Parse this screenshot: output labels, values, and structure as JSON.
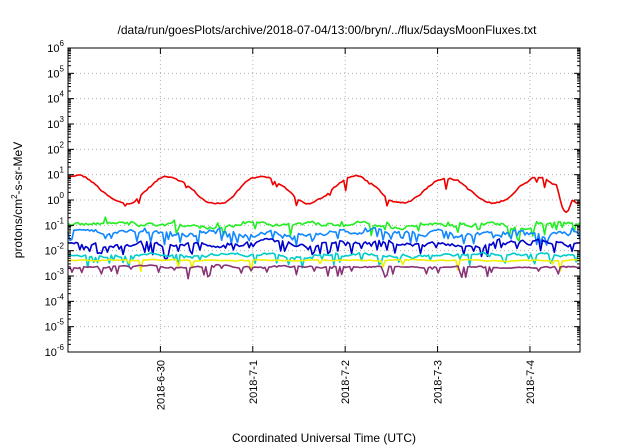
{
  "chart_data": {
    "type": "line",
    "title": "/data/run/goesPlots/archive/2018-07-04/13:00/bryn/../flux/5daysMoonFluxes.txt",
    "xlabel": "Coordinated Universal Time (UTC)",
    "ylabel": {
      "pre": "protons/cm",
      "sup": "2",
      "post": "-s-sr-MeV"
    },
    "yscale": "log",
    "ylim": [
      1e-06,
      1000000.0
    ],
    "xlim": [
      "2018-06-29T00:00",
      "2018-07-04T13:00"
    ],
    "grid": true,
    "legend": "none",
    "y_ticks": [
      {
        "value": 1e-06,
        "exp": "-6"
      },
      {
        "value": 1e-05,
        "exp": "-5"
      },
      {
        "value": 0.0001,
        "exp": "-4"
      },
      {
        "value": 0.001,
        "exp": "-3"
      },
      {
        "value": 0.01,
        "exp": "-2"
      },
      {
        "value": 0.1,
        "exp": "-1"
      },
      {
        "value": 1,
        "exp": "0"
      },
      {
        "value": 10,
        "exp": "1"
      },
      {
        "value": 100,
        "exp": "2"
      },
      {
        "value": 1000,
        "exp": "3"
      },
      {
        "value": 10000,
        "exp": "4"
      },
      {
        "value": 100000,
        "exp": "5"
      },
      {
        "value": 1000000,
        "exp": "6"
      }
    ],
    "x_ticks": [
      {
        "value": "2018-06-30T00:00",
        "label": "2018-6-30"
      },
      {
        "value": "2018-07-01T00:00",
        "label": "2018-7-1"
      },
      {
        "value": "2018-07-02T00:00",
        "label": "2018-7-2"
      },
      {
        "value": "2018-07-03T00:00",
        "label": "2018-7-3"
      },
      {
        "value": "2018-07-04T00:00",
        "label": "2018-7-4"
      }
    ],
    "series": [
      {
        "color": "#ee0000",
        "base": 2.5,
        "diurnal": 0.55,
        "phase": 0.85,
        "noise": 0.08,
        "spikes": 0.05,
        "dips": [
          [
            "2018-07-04T07:00",
            "2018-07-04T11:00",
            0.8
          ]
        ]
      },
      {
        "color": "#22ee22",
        "base": 0.11,
        "diurnal": 0,
        "phase": 0,
        "noise": 0.14,
        "spikes": 0.12
      },
      {
        "color": "#1188ff",
        "base": 0.05,
        "diurnal": 0,
        "phase": 0,
        "noise": 0.16,
        "spikes": 0.22
      },
      {
        "color": "#0000cc",
        "base": 0.018,
        "diurnal": 0,
        "phase": 0,
        "noise": 0.14,
        "spikes": 0.28
      },
      {
        "color": "#00cccc",
        "base": 0.007,
        "diurnal": 0,
        "phase": 0,
        "noise": 0.1,
        "spikes": 0.2
      },
      {
        "color": "#f0f000",
        "base": 0.0042,
        "diurnal": 0,
        "phase": 0,
        "noise": 0.03,
        "spikes": 0.06
      },
      {
        "color": "#883377",
        "base": 0.0023,
        "diurnal": 0,
        "phase": 0,
        "noise": 0.05,
        "spikes": 0.18
      }
    ]
  }
}
